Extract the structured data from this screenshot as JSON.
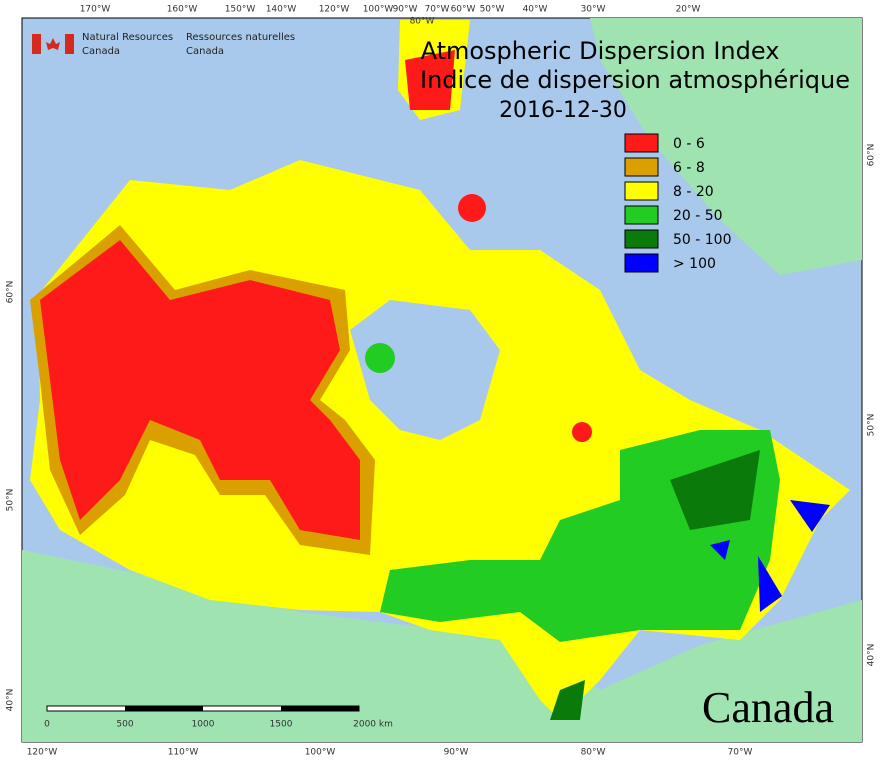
{
  "header": {
    "title": "Atmospheric Dispersion Index",
    "title_fr": "Indice de dispersion atmosphérique",
    "date": "2016-12-30"
  },
  "logo": {
    "en": [
      "Natural Resources",
      "Canada"
    ],
    "fr": [
      "Ressources naturelles",
      "Canada"
    ]
  },
  "wordmark": "Canada",
  "legend": [
    {
      "label": "0 - 6",
      "color": "#ff1a1a"
    },
    {
      "label": "6 - 8",
      "color": "#d9a000"
    },
    {
      "label": "8 - 20",
      "color": "#ffff00"
    },
    {
      "label": "20 - 50",
      "color": "#22cc22"
    },
    {
      "label": "50 - 100",
      "color": "#0a7a0a"
    },
    {
      "label": "> 100",
      "color": "#0000ff"
    }
  ],
  "graticule": {
    "top": [
      "170°W",
      "160°W",
      "150°W",
      "140°W",
      "120°W",
      "100°W",
      "90°W",
      "80°W",
      "70°W",
      "60°W",
      "50°W",
      "40°W",
      "30°W",
      "20°W"
    ],
    "bottom": [
      "120°W",
      "110°W",
      "100°W",
      "90°W",
      "80°W",
      "70°W"
    ],
    "left": [
      "60°N",
      "50°N",
      "40°N"
    ],
    "right": [
      "60°N",
      "50°N",
      "40°N"
    ]
  },
  "scale_bar": [
    "0",
    "500",
    "1000",
    "1500",
    "2000 km"
  ]
}
